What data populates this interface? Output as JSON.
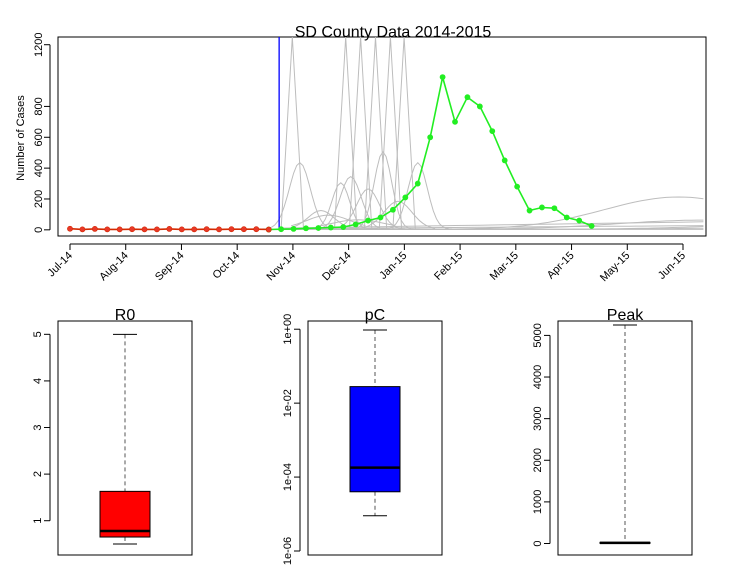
{
  "chart_data": [
    {
      "type": "line",
      "title": "SD County Data 2014-2015",
      "xlabel": "",
      "ylabel": "Number of Cases",
      "ylim": [
        -40,
        1250
      ],
      "yticks": [
        0,
        200,
        400,
        600,
        800,
        1200
      ],
      "xticks": [
        "Jul-14",
        "Aug-14",
        "Sep-14",
        "Oct-14",
        "Nov-14",
        "Dec-14",
        "Jan-15",
        "Feb-15",
        "Mar-15",
        "Apr-15",
        "May-15",
        "Jun-15"
      ],
      "cutoff_week": 17,
      "colors": {
        "observed": "#d42a00",
        "observed_marker": "#e8382a",
        "future": "#22ee22",
        "simulations": "#bdbdbd",
        "cutoff": "#0000ff"
      },
      "series": [
        {
          "values": [
            7,
            3,
            6,
            3,
            3,
            4,
            3,
            3,
            6,
            3,
            3,
            4,
            3,
            4,
            4,
            4,
            2,
            null,
            null,
            null,
            null,
            null,
            null,
            null,
            null,
            null,
            null,
            null,
            null,
            null,
            null,
            null,
            null,
            null,
            null,
            null,
            null,
            null,
            null,
            null,
            null,
            null,
            null
          ]
        },
        {
          "values": [
            null,
            null,
            null,
            null,
            null,
            null,
            null,
            null,
            null,
            null,
            null,
            null,
            null,
            null,
            null,
            null,
            2,
            4,
            6,
            10,
            12,
            15,
            18,
            35,
            60,
            80,
            130,
            210,
            300,
            600,
            990,
            700,
            860,
            800,
            640,
            450,
            280,
            125,
            145,
            140,
            80,
            60,
            25
          ]
        }
      ]
    },
    {
      "type": "box",
      "title": "R0",
      "yticks": [
        1,
        2,
        3,
        4,
        5
      ],
      "ylim": [
        0.35,
        5.2
      ],
      "box": {
        "whisker_low": 0.5,
        "q1": 0.65,
        "median": 0.78,
        "q3": 1.63,
        "whisker_high": 5.0
      },
      "fill": "#ff0000"
    },
    {
      "type": "box",
      "title": "pC",
      "log_scale": true,
      "yticks": [
        "1e-06",
        "1e-04",
        "1e-02",
        "1e+00"
      ],
      "ylim": [
        1e-06,
        1.3
      ],
      "box": {
        "whisker_low": 9e-06,
        "q1": 4e-05,
        "median": 0.00018,
        "q3": 0.028,
        "whisker_high": 0.95
      },
      "fill": "#0000ff"
    },
    {
      "type": "box",
      "title": "Peak",
      "yticks": [
        0,
        1000,
        2000,
        3000,
        4000,
        5000
      ],
      "ylim": [
        -180,
        5250
      ],
      "box": {
        "whisker_low": 0,
        "q1": 8,
        "median": 14,
        "q3": 28,
        "whisker_high": 5250
      },
      "fill": "#000000"
    }
  ]
}
